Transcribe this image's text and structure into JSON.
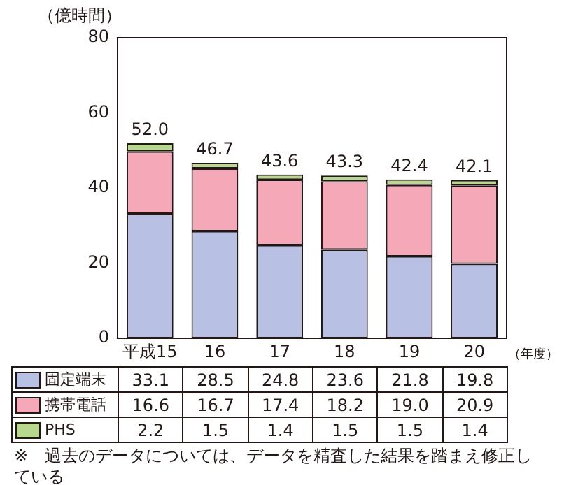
{
  "chart_data": {
    "type": "bar",
    "stacked": true,
    "ylabel": "（億時間）",
    "xlabel": "（年度）",
    "categories": [
      "平成15",
      "16",
      "17",
      "18",
      "19",
      "20"
    ],
    "series": [
      {
        "name": "固定端末",
        "color": "#b8c0e4",
        "values": [
          33.1,
          28.5,
          24.8,
          23.6,
          21.8,
          19.8
        ],
        "value_labels": [
          "33.1",
          "28.5",
          "24.8",
          "23.6",
          "21.8",
          "19.8"
        ]
      },
      {
        "name": "携帯電話",
        "color": "#f4a8b8",
        "values": [
          16.6,
          16.7,
          17.4,
          18.2,
          19.0,
          20.9
        ],
        "value_labels": [
          "16.6",
          "16.7",
          "17.4",
          "18.2",
          "19.0",
          "20.9"
        ]
      },
      {
        "name": "PHS",
        "color": "#b8d890",
        "values": [
          2.2,
          1.5,
          1.4,
          1.5,
          1.5,
          1.4
        ],
        "value_labels": [
          "2.2",
          "1.5",
          "1.4",
          "1.5",
          "1.5",
          "1.4"
        ]
      }
    ],
    "totals": [
      "52.0",
      "46.7",
      "43.6",
      "43.3",
      "42.4",
      "42.1"
    ],
    "ylim": [
      0,
      80
    ],
    "yticks": [
      0,
      20,
      40,
      60,
      80
    ],
    "grid": false,
    "legend": "bottom",
    "annotations": [
      "※　過去のデータについては、データを精査した結果を踏まえ修正している"
    ]
  }
}
